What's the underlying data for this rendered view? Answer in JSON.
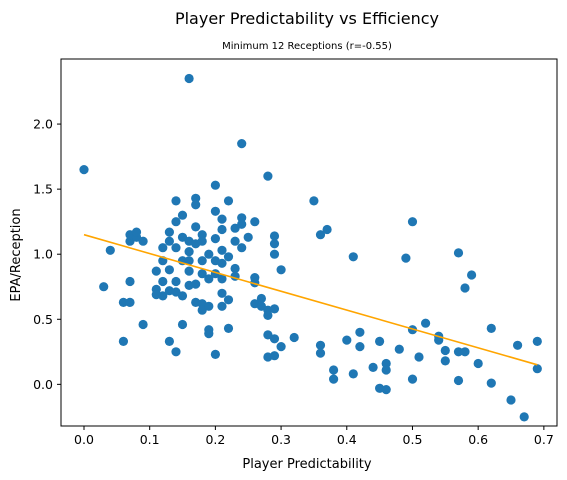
{
  "chart_data": {
    "type": "scatter",
    "title": "Player Predictability vs Efficiency",
    "subtitle": "Minimum 12 Receptions (r=-0.55)",
    "xlabel": "Player Predictability",
    "ylabel": "EPA/Reception",
    "xlim": [
      -0.035,
      0.72
    ],
    "ylim": [
      -0.32,
      2.5
    ],
    "xticks": [
      0.0,
      0.1,
      0.2,
      0.3,
      0.4,
      0.5,
      0.6,
      0.7
    ],
    "xtick_labels": [
      "0.0",
      "0.1",
      "0.2",
      "0.3",
      "0.4",
      "0.5",
      "0.6",
      "0.7"
    ],
    "yticks": [
      0.0,
      0.5,
      1.0,
      1.5,
      2.0
    ],
    "ytick_labels": [
      "0.0",
      "0.5",
      "1.0",
      "1.5",
      "2.0"
    ],
    "grid": false,
    "point_color": "#1f77b4",
    "trend_color": "#ffa500",
    "trendline": {
      "x": [
        0.0,
        0.69
      ],
      "y": [
        1.15,
        0.15
      ]
    },
    "series": [
      {
        "points": [
          [
            0.0,
            1.65
          ],
          [
            0.03,
            0.75
          ],
          [
            0.04,
            1.03
          ],
          [
            0.06,
            0.63
          ],
          [
            0.06,
            0.33
          ],
          [
            0.07,
            0.63
          ],
          [
            0.07,
            0.79
          ],
          [
            0.07,
            1.1
          ],
          [
            0.07,
            1.15
          ],
          [
            0.08,
            1.13
          ],
          [
            0.08,
            1.17
          ],
          [
            0.09,
            0.46
          ],
          [
            0.09,
            1.1
          ],
          [
            0.11,
            0.73
          ],
          [
            0.11,
            0.69
          ],
          [
            0.11,
            0.87
          ],
          [
            0.12,
            1.05
          ],
          [
            0.12,
            0.95
          ],
          [
            0.12,
            0.79
          ],
          [
            0.12,
            0.68
          ],
          [
            0.13,
            0.33
          ],
          [
            0.13,
            0.72
          ],
          [
            0.13,
            0.88
          ],
          [
            0.13,
            1.1
          ],
          [
            0.13,
            1.17
          ],
          [
            0.14,
            1.41
          ],
          [
            0.14,
            1.25
          ],
          [
            0.14,
            1.05
          ],
          [
            0.14,
            0.79
          ],
          [
            0.14,
            0.71
          ],
          [
            0.14,
            0.25
          ],
          [
            0.15,
            0.46
          ],
          [
            0.15,
            0.68
          ],
          [
            0.15,
            0.95
          ],
          [
            0.15,
            1.13
          ],
          [
            0.15,
            1.3
          ],
          [
            0.16,
            2.35
          ],
          [
            0.16,
            1.1
          ],
          [
            0.16,
            1.02
          ],
          [
            0.16,
            0.95
          ],
          [
            0.16,
            0.87
          ],
          [
            0.16,
            0.76
          ],
          [
            0.17,
            1.43
          ],
          [
            0.17,
            1.38
          ],
          [
            0.17,
            1.21
          ],
          [
            0.17,
            1.08
          ],
          [
            0.17,
            0.77
          ],
          [
            0.17,
            0.63
          ],
          [
            0.18,
            1.15
          ],
          [
            0.18,
            1.1
          ],
          [
            0.18,
            0.95
          ],
          [
            0.18,
            0.85
          ],
          [
            0.18,
            0.62
          ],
          [
            0.18,
            0.57
          ],
          [
            0.19,
            1.0
          ],
          [
            0.19,
            0.81
          ],
          [
            0.19,
            0.6
          ],
          [
            0.19,
            0.42
          ],
          [
            0.19,
            0.39
          ],
          [
            0.2,
            1.53
          ],
          [
            0.2,
            1.33
          ],
          [
            0.2,
            1.12
          ],
          [
            0.2,
            0.95
          ],
          [
            0.2,
            0.85
          ],
          [
            0.2,
            0.23
          ],
          [
            0.21,
            1.27
          ],
          [
            0.21,
            1.19
          ],
          [
            0.21,
            1.03
          ],
          [
            0.21,
            0.93
          ],
          [
            0.21,
            0.81
          ],
          [
            0.21,
            0.7
          ],
          [
            0.21,
            0.6
          ],
          [
            0.22,
            1.41
          ],
          [
            0.22,
            0.98
          ],
          [
            0.22,
            0.65
          ],
          [
            0.22,
            0.43
          ],
          [
            0.23,
            1.2
          ],
          [
            0.23,
            1.1
          ],
          [
            0.23,
            0.89
          ],
          [
            0.23,
            0.83
          ],
          [
            0.24,
            1.85
          ],
          [
            0.24,
            1.28
          ],
          [
            0.24,
            1.23
          ],
          [
            0.24,
            1.05
          ],
          [
            0.25,
            1.13
          ],
          [
            0.26,
            1.25
          ],
          [
            0.26,
            0.82
          ],
          [
            0.26,
            0.78
          ],
          [
            0.26,
            0.62
          ],
          [
            0.27,
            0.66
          ],
          [
            0.27,
            0.6
          ],
          [
            0.28,
            1.6
          ],
          [
            0.28,
            0.57
          ],
          [
            0.28,
            0.53
          ],
          [
            0.28,
            0.38
          ],
          [
            0.28,
            0.21
          ],
          [
            0.29,
            1.14
          ],
          [
            0.29,
            1.08
          ],
          [
            0.29,
            1.0
          ],
          [
            0.29,
            0.58
          ],
          [
            0.29,
            0.35
          ],
          [
            0.29,
            0.22
          ],
          [
            0.3,
            0.88
          ],
          [
            0.3,
            0.29
          ],
          [
            0.32,
            0.36
          ],
          [
            0.35,
            1.41
          ],
          [
            0.36,
            1.15
          ],
          [
            0.36,
            0.3
          ],
          [
            0.36,
            0.24
          ],
          [
            0.37,
            1.19
          ],
          [
            0.38,
            0.11
          ],
          [
            0.38,
            0.04
          ],
          [
            0.4,
            0.34
          ],
          [
            0.41,
            0.98
          ],
          [
            0.41,
            0.08
          ],
          [
            0.42,
            0.4
          ],
          [
            0.42,
            0.29
          ],
          [
            0.44,
            0.13
          ],
          [
            0.45,
            0.33
          ],
          [
            0.45,
            -0.03
          ],
          [
            0.46,
            0.16
          ],
          [
            0.46,
            0.11
          ],
          [
            0.46,
            -0.04
          ],
          [
            0.48,
            0.27
          ],
          [
            0.49,
            0.97
          ],
          [
            0.5,
            1.25
          ],
          [
            0.5,
            0.42
          ],
          [
            0.5,
            0.04
          ],
          [
            0.51,
            0.21
          ],
          [
            0.52,
            0.47
          ],
          [
            0.54,
            0.37
          ],
          [
            0.54,
            0.34
          ],
          [
            0.55,
            0.26
          ],
          [
            0.55,
            0.18
          ],
          [
            0.57,
            1.01
          ],
          [
            0.57,
            0.25
          ],
          [
            0.57,
            0.03
          ],
          [
            0.58,
            0.74
          ],
          [
            0.58,
            0.25
          ],
          [
            0.59,
            0.84
          ],
          [
            0.6,
            0.16
          ],
          [
            0.62,
            0.43
          ],
          [
            0.62,
            0.01
          ],
          [
            0.65,
            -0.12
          ],
          [
            0.66,
            0.3
          ],
          [
            0.67,
            -0.25
          ],
          [
            0.69,
            0.33
          ],
          [
            0.69,
            0.12
          ]
        ]
      }
    ]
  }
}
